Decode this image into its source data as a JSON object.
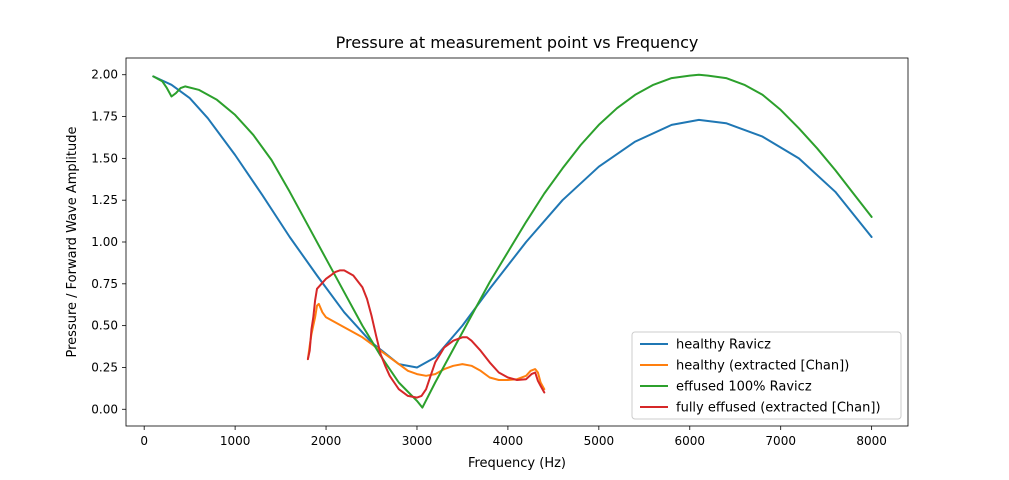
{
  "chart_data": {
    "type": "line",
    "title": "Pressure at measurement point vs Frequency",
    "xlabel": "Frequency (Hz)",
    "ylabel": "Pressure / Forward Wave Amplitude",
    "xlim": [
      -200,
      8400
    ],
    "ylim": [
      -0.1,
      2.1
    ],
    "xticks": [
      0,
      1000,
      2000,
      3000,
      4000,
      5000,
      6000,
      7000,
      8000
    ],
    "yticks": [
      0.0,
      0.25,
      0.5,
      0.75,
      1.0,
      1.25,
      1.5,
      1.75,
      2.0
    ],
    "xtick_labels": [
      "0",
      "1000",
      "2000",
      "3000",
      "4000",
      "5000",
      "6000",
      "7000",
      "8000"
    ],
    "ytick_labels": [
      "0.00",
      "0.25",
      "0.50",
      "0.75",
      "1.00",
      "1.25",
      "1.50",
      "1.75",
      "2.00"
    ],
    "grid": false,
    "legend_position": "lower-right",
    "series": [
      {
        "name": "healthy Ravicz",
        "color": "#1f77b4",
        "x": [
          100,
          300,
          500,
          700,
          1000,
          1300,
          1600,
          1900,
          2200,
          2500,
          2800,
          3000,
          3200,
          3500,
          3800,
          4200,
          4600,
          5000,
          5400,
          5800,
          6100,
          6400,
          6800,
          7200,
          7600,
          8000
        ],
        "y": [
          1.99,
          1.94,
          1.86,
          1.74,
          1.52,
          1.28,
          1.03,
          0.8,
          0.58,
          0.4,
          0.27,
          0.25,
          0.31,
          0.5,
          0.72,
          1.0,
          1.25,
          1.45,
          1.6,
          1.7,
          1.73,
          1.71,
          1.63,
          1.5,
          1.3,
          1.03
        ]
      },
      {
        "name": "healthy (extracted [Chan])",
        "color": "#ff7f0e",
        "x": [
          1800,
          1820,
          1840,
          1860,
          1880,
          1900,
          1920,
          1960,
          2000,
          2100,
          2200,
          2300,
          2400,
          2500,
          2600,
          2700,
          2800,
          2900,
          3000,
          3100,
          3200,
          3300,
          3400,
          3500,
          3600,
          3700,
          3800,
          3900,
          4000,
          4100,
          4200,
          4250,
          4300,
          4330,
          4360,
          4400
        ],
        "y": [
          0.3,
          0.38,
          0.45,
          0.5,
          0.55,
          0.62,
          0.63,
          0.58,
          0.55,
          0.52,
          0.49,
          0.46,
          0.43,
          0.39,
          0.35,
          0.31,
          0.27,
          0.23,
          0.21,
          0.2,
          0.21,
          0.24,
          0.26,
          0.27,
          0.26,
          0.23,
          0.19,
          0.175,
          0.175,
          0.18,
          0.2,
          0.23,
          0.24,
          0.22,
          0.16,
          0.12
        ]
      },
      {
        "name": "effused 100% Ravicz",
        "color": "#2ca02c",
        "x": [
          100,
          200,
          250,
          300,
          350,
          400,
          450,
          600,
          800,
          1000,
          1200,
          1400,
          1600,
          1800,
          2000,
          2200,
          2400,
          2600,
          2800,
          3000,
          3060,
          3200,
          3400,
          3600,
          3800,
          4000,
          4200,
          4400,
          4600,
          4800,
          5000,
          5200,
          5400,
          5600,
          5800,
          6000,
          6100,
          6200,
          6400,
          6600,
          6800,
          7000,
          7200,
          7400,
          7600,
          7800,
          8000
        ],
        "y": [
          1.99,
          1.96,
          1.92,
          1.87,
          1.89,
          1.92,
          1.93,
          1.91,
          1.85,
          1.76,
          1.64,
          1.49,
          1.3,
          1.1,
          0.9,
          0.7,
          0.5,
          0.32,
          0.16,
          0.05,
          0.01,
          0.16,
          0.36,
          0.56,
          0.76,
          0.94,
          1.12,
          1.29,
          1.44,
          1.58,
          1.7,
          1.8,
          1.88,
          1.94,
          1.98,
          1.995,
          2.0,
          1.995,
          1.98,
          1.94,
          1.88,
          1.79,
          1.68,
          1.56,
          1.43,
          1.29,
          1.15
        ]
      },
      {
        "name": "fully effused (extracted [Chan])",
        "color": "#d62728",
        "x": [
          1800,
          1820,
          1840,
          1860,
          1880,
          1900,
          1950,
          2000,
          2050,
          2100,
          2150,
          2200,
          2300,
          2400,
          2450,
          2500,
          2550,
          2600,
          2650,
          2700,
          2750,
          2800,
          2900,
          3000,
          3050,
          3100,
          3150,
          3200,
          3300,
          3400,
          3500,
          3550,
          3600,
          3700,
          3800,
          3900,
          4000,
          4100,
          4200,
          4260,
          4300,
          4330,
          4360,
          4400
        ],
        "y": [
          0.3,
          0.35,
          0.48,
          0.55,
          0.65,
          0.72,
          0.75,
          0.78,
          0.8,
          0.82,
          0.83,
          0.83,
          0.8,
          0.73,
          0.66,
          0.56,
          0.44,
          0.33,
          0.26,
          0.2,
          0.16,
          0.12,
          0.08,
          0.07,
          0.08,
          0.12,
          0.2,
          0.28,
          0.37,
          0.41,
          0.43,
          0.43,
          0.41,
          0.35,
          0.28,
          0.22,
          0.19,
          0.175,
          0.18,
          0.21,
          0.22,
          0.17,
          0.14,
          0.1
        ]
      }
    ]
  }
}
